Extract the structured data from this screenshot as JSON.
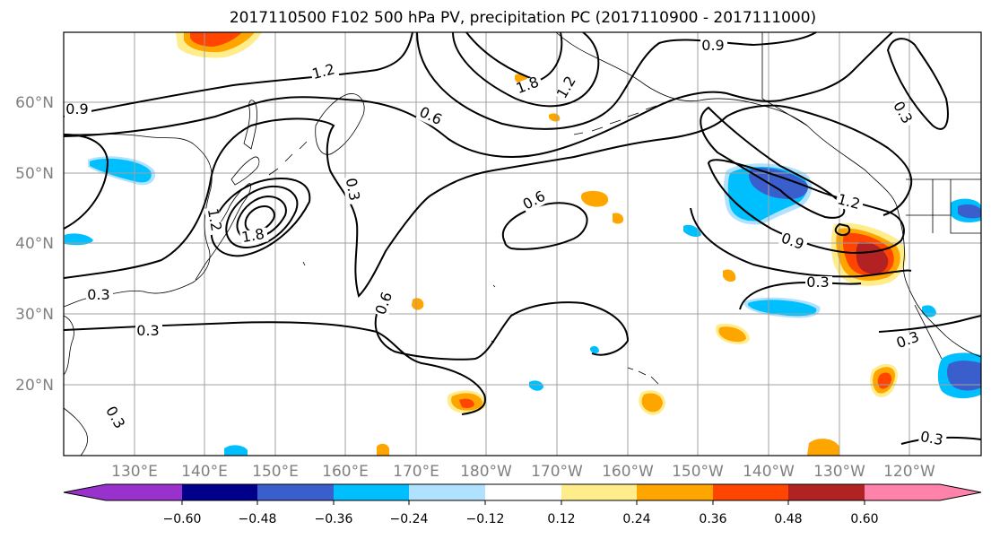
{
  "title": "2017110500 F102 500 hPa PV, precipitation PC (2017110900 - 2017111000)",
  "lat_labels": [
    "60°N",
    "50°N",
    "40°N",
    "30°N",
    "20°N"
  ],
  "lon_labels": [
    "130°E",
    "140°E",
    "150°E",
    "160°E",
    "170°E",
    "180°W",
    "170°W",
    "160°W",
    "150°W",
    "140°W",
    "130°W",
    "120°W"
  ],
  "contour_labels": [
    "0.9",
    "1.2",
    "1.8",
    "1.2",
    "0.6",
    "0.3",
    "0.6",
    "0.6",
    "1.8",
    "0.3",
    "0.3",
    "0.3",
    "0.9",
    "0.3",
    "1.2",
    "0.9",
    "0.3",
    "0.3",
    "0.3",
    "1.2"
  ],
  "colorbar": {
    "tick_labels": [
      "−0.60",
      "−0.48",
      "−0.36",
      "−0.24",
      "−0.12",
      "0.12",
      "0.24",
      "0.36",
      "0.48",
      "0.60"
    ],
    "colors": [
      "#9932cc",
      "#00008b",
      "#3a5fcd",
      "#00bfff",
      "#b0e2ff",
      "#ffffff",
      "#ffec8b",
      "#ffa500",
      "#ff4500",
      "#b22222",
      "#ff82ab"
    ]
  },
  "colors": {
    "contour": "#000000",
    "grid": "#a0a0a0",
    "coast": "#000000",
    "axis_label": "#808080"
  }
}
